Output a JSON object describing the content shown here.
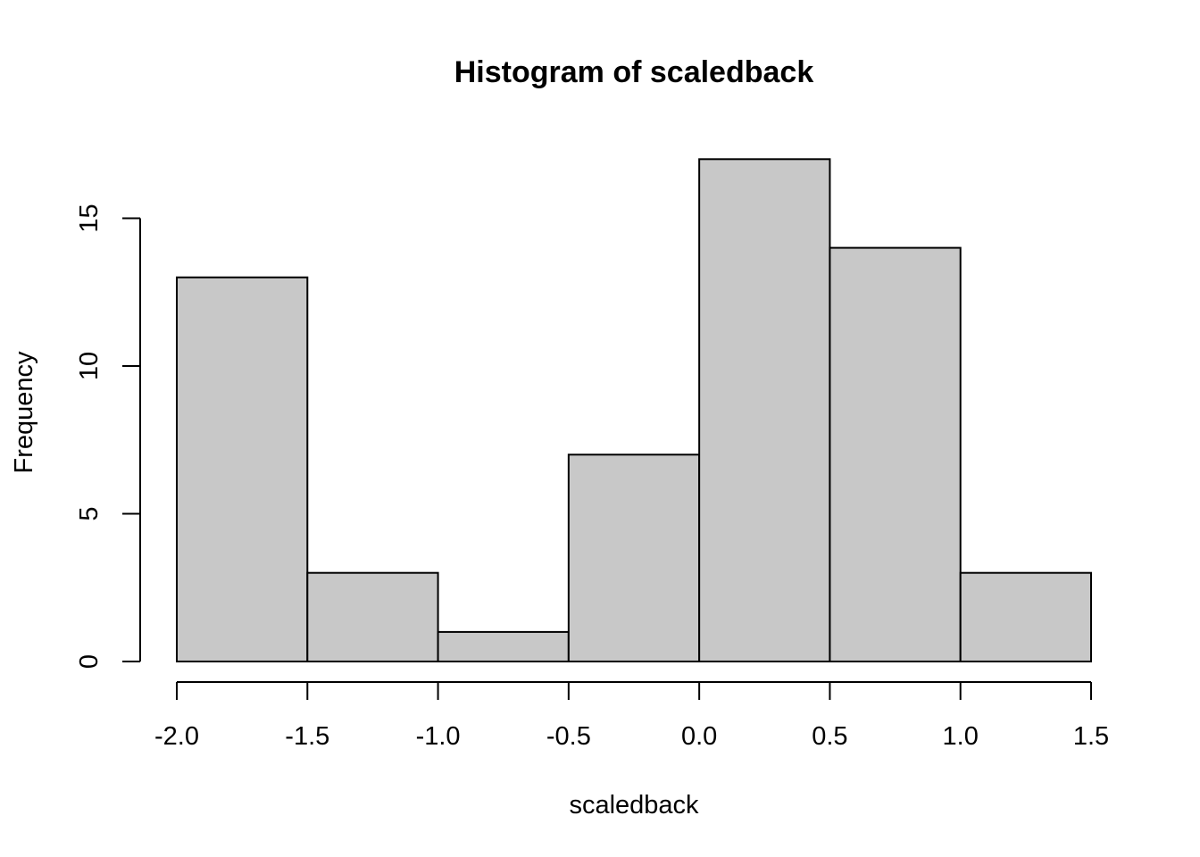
{
  "chart_data": {
    "type": "bar",
    "subtype": "histogram",
    "title": "Histogram of scaledback",
    "xlabel": "scaledback",
    "ylabel": "Frequency",
    "bins": [
      {
        "start": -2.0,
        "end": -1.5,
        "count": 13
      },
      {
        "start": -1.5,
        "end": -1.0,
        "count": 3
      },
      {
        "start": -1.0,
        "end": -0.5,
        "count": 1
      },
      {
        "start": -0.5,
        "end": 0.0,
        "count": 7
      },
      {
        "start": 0.0,
        "end": 0.5,
        "count": 17
      },
      {
        "start": 0.5,
        "end": 1.0,
        "count": 14
      },
      {
        "start": 1.0,
        "end": 1.5,
        "count": 3
      }
    ],
    "xlim": [
      -2.0,
      1.5
    ],
    "ylim": [
      0,
      17
    ],
    "x_ticks": [
      -2.0,
      -1.5,
      -1.0,
      -0.5,
      0.0,
      0.5,
      1.0,
      1.5
    ],
    "x_tick_labels": [
      "-2.0",
      "-1.5",
      "-1.0",
      "-0.5",
      "0.0",
      "0.5",
      "1.0",
      "1.5"
    ],
    "y_ticks": [
      0,
      5,
      10,
      15
    ],
    "y_tick_labels": [
      "0",
      "5",
      "10",
      "15"
    ],
    "grid": false,
    "legend": "none",
    "colors": {
      "bar_fill": "#c8c8c8",
      "bar_stroke": "#000000",
      "axis": "#000000",
      "background": "#ffffff"
    }
  }
}
